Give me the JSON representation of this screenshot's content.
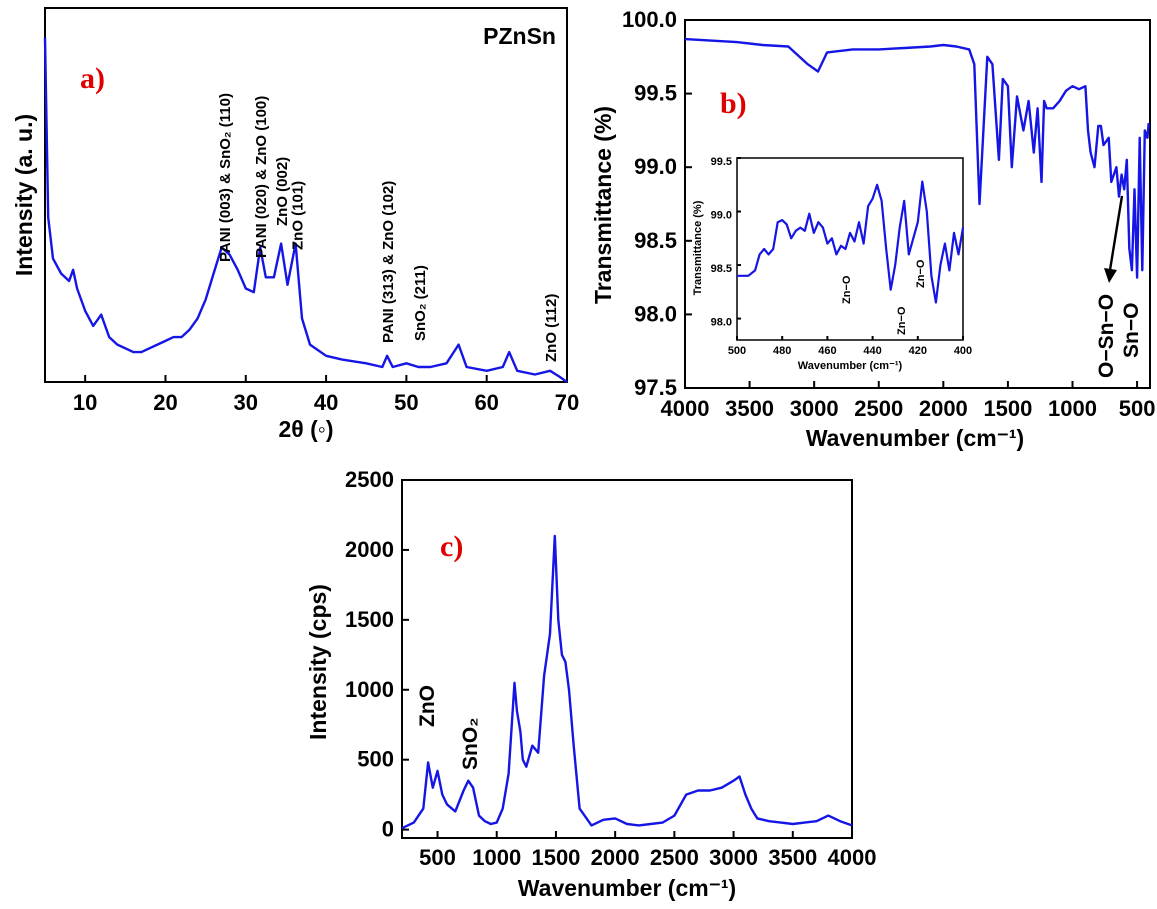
{
  "colors": {
    "series": "#1515e6",
    "panel_label": "#e00000",
    "axis": "#000000"
  },
  "charts": [
    {
      "id": "a",
      "panel_label": "a)",
      "type": "line",
      "title": "PZnSn",
      "xlabel": "2θ (◦)",
      "ylabel": "Intensity (a. u.)",
      "xlim": [
        5,
        70
      ],
      "xticks": [
        10,
        20,
        30,
        40,
        50,
        60,
        70
      ],
      "y_tick_labels": false,
      "series": [
        {
          "x": [
            5,
            5.4,
            6,
            7,
            8,
            8.5,
            9,
            10,
            11,
            12,
            13,
            14,
            15,
            16,
            17,
            18,
            19,
            20,
            21,
            22,
            23,
            24,
            25,
            26,
            27,
            28,
            29,
            30,
            31,
            31.8,
            32.5,
            33.5,
            34.4,
            35.2,
            36.2,
            37,
            38,
            40,
            42,
            45,
            47,
            47.6,
            48.3,
            50,
            51.5,
            53,
            55,
            56.5,
            57.5,
            60,
            62,
            62.8,
            63.8,
            66,
            67.9,
            69,
            70
          ],
          "y": [
            0.92,
            0.44,
            0.33,
            0.29,
            0.27,
            0.3,
            0.25,
            0.19,
            0.15,
            0.18,
            0.12,
            0.1,
            0.09,
            0.08,
            0.08,
            0.09,
            0.1,
            0.11,
            0.12,
            0.12,
            0.14,
            0.17,
            0.22,
            0.29,
            0.36,
            0.34,
            0.3,
            0.25,
            0.24,
            0.36,
            0.28,
            0.28,
            0.37,
            0.26,
            0.37,
            0.17,
            0.1,
            0.07,
            0.06,
            0.05,
            0.04,
            0.07,
            0.04,
            0.05,
            0.04,
            0.04,
            0.05,
            0.1,
            0.04,
            0.03,
            0.04,
            0.08,
            0.03,
            0.02,
            0.03,
            0.015,
            0.0
          ]
        }
      ],
      "annotations": [
        {
          "text": "PANI (003) & SnO₂ (110)",
          "x": 27.3
        },
        {
          "text": "PANI (020) & ZnO (100)",
          "x": 31.8
        },
        {
          "text": "ZnO (002)",
          "x": 34.4
        },
        {
          "text": "ZnO (101)",
          "x": 36.3
        },
        {
          "text": "PANI (313) & ZnO (102)",
          "x": 47.6
        },
        {
          "text": "SnO₂ (211)",
          "x": 51.6
        },
        {
          "text": "ZnO (112)",
          "x": 67.9
        }
      ]
    },
    {
      "id": "b",
      "panel_label": "b)",
      "type": "line",
      "xlabel": "Wavenumber (cm⁻¹)",
      "ylabel": "Transmittance (%)",
      "xlim": [
        4000,
        400
      ],
      "ylim": [
        97.5,
        100.0
      ],
      "xticks": [
        4000,
        3500,
        3000,
        2500,
        2000,
        1500,
        1000,
        500
      ],
      "yticks": [
        "97.5",
        "98.0",
        "98.5",
        "99.0",
        "99.5",
        "100.0"
      ],
      "series": [
        {
          "x": [
            4000,
            3800,
            3600,
            3400,
            3200,
            3050,
            2970,
            2900,
            2700,
            2500,
            2300,
            2100,
            2000,
            1900,
            1800,
            1760,
            1720,
            1660,
            1620,
            1570,
            1540,
            1500,
            1470,
            1430,
            1380,
            1340,
            1300,
            1270,
            1240,
            1220,
            1200,
            1180,
            1150,
            1100,
            1050,
            1000,
            950,
            900,
            880,
            860,
            830,
            800,
            780,
            760,
            720,
            700,
            660,
            640,
            620,
            600,
            580,
            560,
            540,
            520,
            500,
            480,
            460,
            440,
            420,
            410
          ],
          "y": [
            99.87,
            99.86,
            99.85,
            99.83,
            99.82,
            99.7,
            99.65,
            99.78,
            99.8,
            99.8,
            99.81,
            99.82,
            99.83,
            99.82,
            99.8,
            99.7,
            98.75,
            99.75,
            99.7,
            99.05,
            99.6,
            99.55,
            99.0,
            99.48,
            99.25,
            99.45,
            99.1,
            99.4,
            98.9,
            99.45,
            99.4,
            99.4,
            99.4,
            99.45,
            99.52,
            99.55,
            99.53,
            99.55,
            99.25,
            99.1,
            99.0,
            99.28,
            99.28,
            99.15,
            99.2,
            98.9,
            99.0,
            98.8,
            98.95,
            98.85,
            99.05,
            98.45,
            98.3,
            98.85,
            98.25,
            99.2,
            98.3,
            99.25,
            99.2,
            99.3
          ]
        }
      ],
      "annotations": [
        {
          "text": "O−Sn−O",
          "x": 560
        },
        {
          "text": "Sn−O",
          "x": 470
        }
      ],
      "inset": {
        "type": "line",
        "xlabel": "Wavenumber (cm⁻¹)",
        "ylabel": "Transmittance (%)",
        "xlim": [
          500,
          400
        ],
        "ylim": [
          97.8,
          99.5
        ],
        "xticks": [
          500,
          480,
          460,
          440,
          420,
          400
        ],
        "yticks": [
          "98.0",
          "98.5",
          "99.0",
          "99.5"
        ],
        "series": [
          {
            "x": [
              500,
              495,
              492,
              490,
              488,
              486,
              484,
              482,
              480,
              478,
              476,
              474,
              472,
              470,
              468,
              466,
              464,
              462,
              460,
              458,
              456,
              454,
              452,
              450,
              448,
              446,
              444,
              442,
              440,
              438,
              436,
              434,
              432,
              430,
              428,
              426,
              424,
              422,
              420,
              418,
              416,
              414,
              412,
              410,
              408,
              406,
              404,
              402,
              400
            ],
            "y": [
              98.4,
              98.4,
              98.45,
              98.6,
              98.65,
              98.6,
              98.65,
              98.9,
              98.92,
              98.88,
              98.75,
              98.82,
              98.85,
              98.82,
              98.98,
              98.8,
              98.9,
              98.85,
              98.7,
              98.75,
              98.6,
              98.68,
              98.65,
              98.8,
              98.72,
              98.9,
              98.7,
              99.05,
              99.12,
              99.25,
              99.1,
              98.65,
              98.27,
              98.5,
              98.85,
              99.1,
              98.6,
              98.75,
              98.9,
              99.28,
              99.0,
              98.4,
              98.15,
              98.5,
              98.7,
              98.45,
              98.8,
              98.6,
              98.85
            ]
          }
        ],
        "annotations": [
          {
            "text": "Zn−O",
            "x": 454
          },
          {
            "text": "Zn−O",
            "x": 430
          },
          {
            "text": "Zn−O",
            "x": 420
          }
        ]
      }
    },
    {
      "id": "c",
      "panel_label": "c)",
      "type": "line",
      "xlabel": "Wavenumber (cm⁻¹)",
      "ylabel": "Intensity (cps)",
      "xlim": [
        200,
        4000
      ],
      "ylim": [
        -60,
        2500
      ],
      "xticks": [
        500,
        1000,
        1500,
        2000,
        2500,
        3000,
        3500,
        4000
      ],
      "yticks": [
        0,
        500,
        1000,
        1500,
        2000,
        2500
      ],
      "series": [
        {
          "x": [
            200,
            300,
            380,
            420,
            460,
            500,
            540,
            580,
            650,
            720,
            760,
            800,
            850,
            900,
            950,
            1000,
            1050,
            1100,
            1150,
            1170,
            1200,
            1220,
            1250,
            1300,
            1350,
            1400,
            1450,
            1490,
            1520,
            1550,
            1580,
            1610,
            1650,
            1700,
            1800,
            1900,
            2000,
            2100,
            2200,
            2300,
            2400,
            2500,
            2600,
            2700,
            2800,
            2900,
            3000,
            3050,
            3100,
            3150,
            3200,
            3300,
            3400,
            3500,
            3600,
            3700,
            3800,
            3900,
            4000
          ],
          "y": [
            10,
            50,
            150,
            480,
            300,
            420,
            250,
            180,
            130,
            280,
            350,
            300,
            100,
            60,
            40,
            50,
            150,
            400,
            1050,
            850,
            700,
            500,
            450,
            600,
            550,
            1100,
            1400,
            2100,
            1500,
            1250,
            1200,
            1000,
            600,
            150,
            30,
            70,
            80,
            40,
            30,
            40,
            50,
            100,
            250,
            280,
            280,
            300,
            350,
            380,
            250,
            150,
            80,
            60,
            50,
            40,
            50,
            60,
            100,
            60,
            30
          ]
        }
      ],
      "annotations": [
        {
          "text": "ZnO",
          "x": 400
        },
        {
          "text": "SnO₂",
          "x": 760
        }
      ]
    }
  ]
}
